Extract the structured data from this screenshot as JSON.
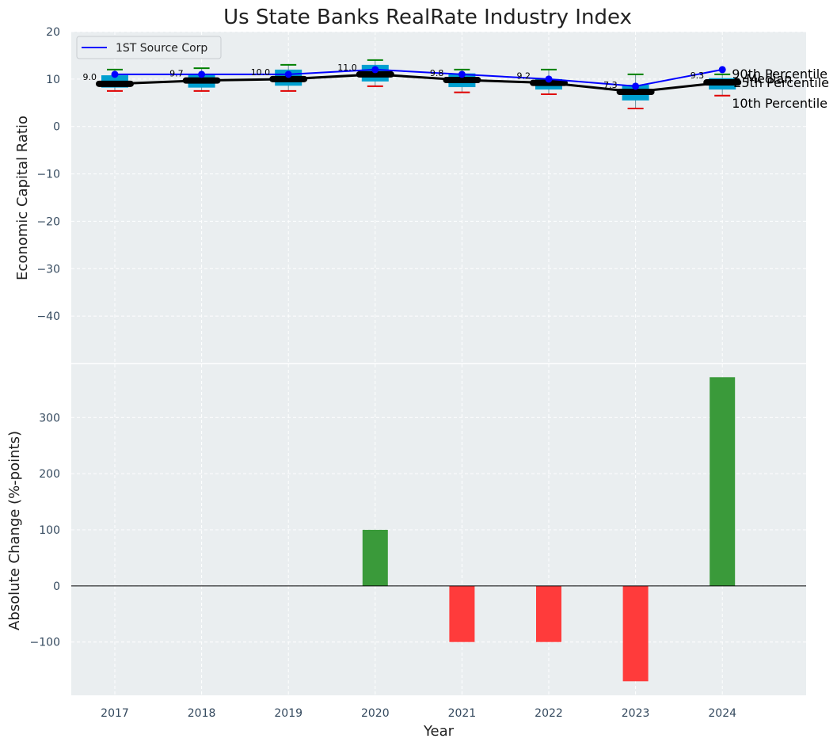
{
  "chart_data": [
    {
      "type": "line",
      "title": "Us State Banks RealRate Industry Index",
      "xlabel": "",
      "ylabel": "Economic Capital Ratio",
      "ylim": [
        -50,
        20
      ],
      "yticks": [
        20,
        10,
        0,
        -10,
        -20,
        -30,
        -40
      ],
      "categories": [
        "2017",
        "2018",
        "2019",
        "2020",
        "2021",
        "2022",
        "2023",
        "2024"
      ],
      "grid": true,
      "legend": "top-left",
      "series": [
        {
          "name": "1ST Source Corp",
          "values": [
            11,
            11,
            11,
            12,
            11,
            10,
            8.5,
            12
          ],
          "color": "#0000ff"
        },
        {
          "values": [
            9.0,
            9.7,
            10.0,
            11.0,
            9.8,
            9.2,
            7.3,
            9.3
          ],
          "color": "#000000",
          "role": "median"
        }
      ],
      "median_labels": [
        "9.0",
        "9.7",
        "10.0",
        "11.0",
        "9.8",
        "9.2",
        "7.3",
        "9.3"
      ],
      "box": {
        "p10": [
          7.5,
          7.5,
          7.5,
          8.5,
          7.2,
          6.8,
          3.8,
          6.5
        ],
        "p25": [
          8.2,
          8.2,
          8.6,
          9.5,
          8.3,
          7.8,
          5.5,
          7.8
        ],
        "p75": [
          10.8,
          11.0,
          12.0,
          13.0,
          11.2,
          10.0,
          8.8,
          10.2
        ],
        "p90": [
          12.0,
          12.3,
          13.0,
          14.0,
          12.0,
          12.0,
          11.0,
          11.0
        ],
        "box_color": "#00a0d0",
        "p90_color": "#008000",
        "p10_color": "#e00000"
      },
      "annotations": [
        "90th Percentile",
        "Median",
        "25th Percentile",
        "10th Percentile"
      ]
    },
    {
      "type": "bar",
      "xlabel": "Year",
      "ylabel": "Absolute Change (%-points)",
      "ylim": [
        -195,
        395
      ],
      "yticks": [
        300,
        200,
        100,
        0,
        -100
      ],
      "categories": [
        "2017",
        "2018",
        "2019",
        "2020",
        "2021",
        "2022",
        "2023",
        "2024"
      ],
      "values": [
        0,
        0,
        0,
        100,
        -100,
        -100,
        -170,
        372
      ],
      "positive_color": "#3a9a3a",
      "negative_color": "#ff3b3b",
      "grid": true
    }
  ]
}
